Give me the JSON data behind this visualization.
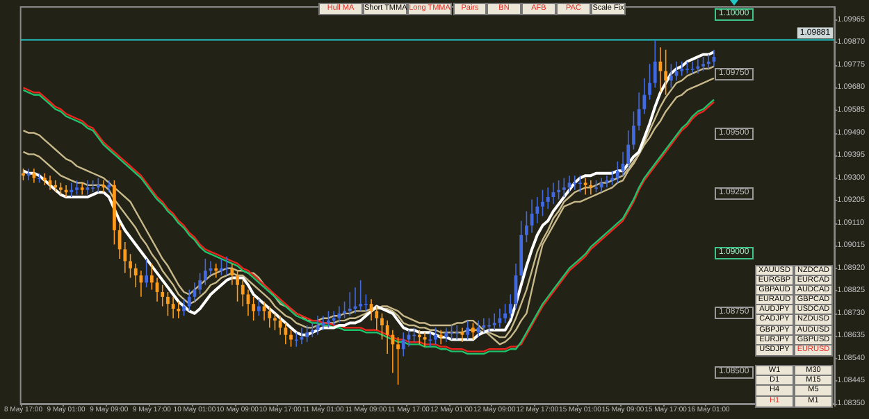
{
  "chart_data": {
    "type": "candlestick",
    "categories": [
      "8 May 17:00",
      null,
      null,
      null,
      null,
      null,
      null,
      null,
      "9 May 01:00",
      null,
      null,
      null,
      null,
      null,
      null,
      null,
      "9 May 09:00",
      null,
      null,
      null,
      null,
      null,
      null,
      null,
      "9 May 17:00",
      null,
      null,
      null,
      null,
      null,
      null,
      null,
      "10 May 01:00",
      null,
      null,
      null,
      null,
      null,
      null,
      null,
      "10 May 09:00",
      null,
      null,
      null,
      null,
      null,
      null,
      null,
      "10 May 17:00",
      null,
      null,
      null,
      null,
      null,
      null,
      null,
      "11 May 01:00",
      null,
      null,
      null,
      null,
      null,
      null,
      null,
      "11 May 09:00",
      null,
      null,
      null,
      null,
      null,
      null,
      null,
      "11 May 17:00",
      null,
      null,
      null,
      null,
      null,
      null,
      null,
      "12 May 01:00",
      null,
      null,
      null,
      null,
      null,
      null,
      null,
      "12 May 09:00",
      null,
      null,
      null,
      null,
      null,
      null,
      null,
      "12 May 17:00",
      null,
      null,
      null,
      null,
      null,
      null,
      null,
      "15 May 01:00",
      null,
      null,
      null,
      null,
      null,
      null,
      null,
      "15 May 09:00",
      null,
      null,
      null,
      null,
      null,
      null,
      null,
      "15 May 17:00",
      null,
      null,
      null,
      null,
      null,
      null,
      null,
      "16 May 01:00",
      null
    ],
    "ohlc": [
      [
        1.0932,
        1.0934,
        1.0929,
        1.0931
      ],
      [
        1.0931,
        1.0934,
        1.0929,
        1.0932
      ],
      [
        1.0932,
        1.0934,
        1.0928,
        1.093
      ],
      [
        1.093,
        1.0932,
        1.0928,
        1.093
      ],
      [
        1.093,
        1.0932,
        1.0927,
        1.0929
      ],
      [
        1.0929,
        1.0931,
        1.0925,
        1.0927
      ],
      [
        1.0927,
        1.0929,
        1.0924,
        1.0926
      ],
      [
        1.0926,
        1.0928,
        1.0923,
        1.0925
      ],
      [
        1.0925,
        1.0927,
        1.0922,
        1.0924
      ],
      [
        1.0924,
        1.0928,
        1.0922,
        1.0925
      ],
      [
        1.0925,
        1.0929,
        1.0923,
        1.0926
      ],
      [
        1.0926,
        1.0928,
        1.0923,
        1.0925
      ],
      [
        1.0925,
        1.0929,
        1.0923,
        1.0926
      ],
      [
        1.0926,
        1.0929,
        1.0924,
        1.0926
      ],
      [
        1.0926,
        1.093,
        1.0924,
        1.0927
      ],
      [
        1.0927,
        1.0929,
        1.0924,
        1.0926
      ],
      [
        1.0926,
        1.0929,
        1.0924,
        1.0927
      ],
      [
        1.0927,
        1.0929,
        1.0902,
        1.0908
      ],
      [
        1.0908,
        1.0911,
        1.0896,
        1.09
      ],
      [
        1.09,
        1.0903,
        1.089,
        1.0895
      ],
      [
        1.0895,
        1.0898,
        1.0888,
        1.0892
      ],
      [
        1.0892,
        1.0894,
        1.0884,
        1.0889
      ],
      [
        1.0889,
        1.0891,
        1.088,
        1.0886
      ],
      [
        1.0886,
        1.0896,
        1.0884,
        1.0889
      ],
      [
        1.0889,
        1.0894,
        1.0883,
        1.0886
      ],
      [
        1.0886,
        1.0888,
        1.0878,
        1.0882
      ],
      [
        1.0882,
        1.0885,
        1.0876,
        1.088
      ],
      [
        1.088,
        1.0882,
        1.0872,
        1.0877
      ],
      [
        1.0877,
        1.088,
        1.0871,
        1.0875
      ],
      [
        1.0875,
        1.0878,
        1.0871,
        1.0874
      ],
      [
        1.0874,
        1.0879,
        1.0872,
        1.0876
      ],
      [
        1.0876,
        1.0883,
        1.0874,
        1.088
      ],
      [
        1.088,
        1.0886,
        1.0878,
        1.0883
      ],
      [
        1.0883,
        1.089,
        1.0881,
        1.0887
      ],
      [
        1.0887,
        1.0896,
        1.0885,
        1.0891
      ],
      [
        1.0891,
        1.0895,
        1.0889,
        1.0892
      ],
      [
        1.0892,
        1.0894,
        1.0888,
        1.0891
      ],
      [
        1.0891,
        1.0896,
        1.0889,
        1.0892
      ],
      [
        1.0892,
        1.0897,
        1.0889,
        1.0892
      ],
      [
        1.0892,
        1.0894,
        1.0885,
        1.0889
      ],
      [
        1.0889,
        1.0891,
        1.0878,
        1.0885
      ],
      [
        1.0885,
        1.0887,
        1.0876,
        1.0881
      ],
      [
        1.0881,
        1.0883,
        1.0872,
        1.0877
      ],
      [
        1.0877,
        1.088,
        1.087,
        1.0874
      ],
      [
        1.0874,
        1.0879,
        1.0872,
        1.0876
      ],
      [
        1.0876,
        1.0878,
        1.087,
        1.0874
      ],
      [
        1.0874,
        1.0876,
        1.0867,
        1.0871
      ],
      [
        1.0871,
        1.0873,
        1.0866,
        1.087
      ],
      [
        1.087,
        1.0872,
        1.0864,
        1.0867
      ],
      [
        1.0867,
        1.0869,
        1.086,
        1.0864
      ],
      [
        1.0864,
        1.0866,
        1.0859,
        1.0862
      ],
      [
        1.0862,
        1.0865,
        1.0859,
        1.0862
      ],
      [
        1.0862,
        1.0867,
        1.086,
        1.0863
      ],
      [
        1.0863,
        1.0868,
        1.0861,
        1.0865
      ],
      [
        1.0865,
        1.0869,
        1.0863,
        1.0866
      ],
      [
        1.0866,
        1.0872,
        1.0864,
        1.0868
      ],
      [
        1.0868,
        1.0872,
        1.0866,
        1.0869
      ],
      [
        1.0869,
        1.0874,
        1.0867,
        1.087
      ],
      [
        1.087,
        1.0874,
        1.0868,
        1.0871
      ],
      [
        1.0871,
        1.0876,
        1.0869,
        1.0873
      ],
      [
        1.0873,
        1.0878,
        1.0871,
        1.0874
      ],
      [
        1.0874,
        1.0882,
        1.0872,
        1.0875
      ],
      [
        1.0875,
        1.0884,
        1.0873,
        1.0876
      ],
      [
        1.0876,
        1.0887,
        1.0874,
        1.0877
      ],
      [
        1.0877,
        1.0881,
        1.0874,
        1.0877
      ],
      [
        1.0877,
        1.0879,
        1.087,
        1.0874
      ],
      [
        1.0874,
        1.0876,
        1.0866,
        1.0871
      ],
      [
        1.0871,
        1.0873,
        1.0862,
        1.0868
      ],
      [
        1.0868,
        1.087,
        1.0856,
        1.0864
      ],
      [
        1.0864,
        1.0866,
        1.0848,
        1.086
      ],
      [
        1.086,
        1.0863,
        1.0843,
        1.0858
      ],
      [
        1.0858,
        1.0865,
        1.0855,
        1.0862
      ],
      [
        1.0862,
        1.0866,
        1.0859,
        1.0864
      ],
      [
        1.0864,
        1.0867,
        1.0861,
        1.0864
      ],
      [
        1.0864,
        1.0866,
        1.086,
        1.0863
      ],
      [
        1.0863,
        1.0865,
        1.0859,
        1.0862
      ],
      [
        1.0862,
        1.0865,
        1.0859,
        1.0862
      ],
      [
        1.0862,
        1.0867,
        1.086,
        1.0864
      ],
      [
        1.0864,
        1.0866,
        1.086,
        1.0863
      ],
      [
        1.0863,
        1.0867,
        1.0861,
        1.0865
      ],
      [
        1.0865,
        1.0868,
        1.0862,
        1.0865
      ],
      [
        1.0865,
        1.0868,
        1.0862,
        1.0865
      ],
      [
        1.0865,
        1.0867,
        1.0861,
        1.0864
      ],
      [
        1.0864,
        1.087,
        1.0862,
        1.0867
      ],
      [
        1.0867,
        1.0869,
        1.0862,
        1.0865
      ],
      [
        1.0865,
        1.087,
        1.0863,
        1.0867
      ],
      [
        1.0867,
        1.0871,
        1.0865,
        1.0868
      ],
      [
        1.0868,
        1.0871,
        1.0865,
        1.0868
      ],
      [
        1.0868,
        1.0873,
        1.0866,
        1.0869
      ],
      [
        1.0869,
        1.0875,
        1.0867,
        1.0871
      ],
      [
        1.0871,
        1.0877,
        1.0869,
        1.0873
      ],
      [
        1.0873,
        1.0881,
        1.0871,
        1.0877
      ],
      [
        1.0877,
        1.0894,
        1.0875,
        1.0889
      ],
      [
        1.0889,
        1.0912,
        1.0887,
        1.0906
      ],
      [
        1.0906,
        1.0916,
        1.0903,
        1.091
      ],
      [
        1.091,
        1.0921,
        1.0907,
        1.0915
      ],
      [
        1.0915,
        1.0922,
        1.0911,
        1.0918
      ],
      [
        1.0918,
        1.0925,
        1.0914,
        1.092
      ],
      [
        1.092,
        1.0926,
        1.0917,
        1.0922
      ],
      [
        1.0922,
        1.0928,
        1.0919,
        1.0924
      ],
      [
        1.0924,
        1.0929,
        1.0921,
        1.0925
      ],
      [
        1.0925,
        1.093,
        1.0922,
        1.0926
      ],
      [
        1.0926,
        1.0931,
        1.0924,
        1.0928
      ],
      [
        1.0928,
        1.0931,
        1.0925,
        1.0928
      ],
      [
        1.0928,
        1.0931,
        1.0924,
        1.0928
      ],
      [
        1.0928,
        1.093,
        1.0923,
        1.0927
      ],
      [
        1.0927,
        1.0929,
        1.0923,
        1.0926
      ],
      [
        1.0926,
        1.0929,
        1.0924,
        1.0926
      ],
      [
        1.0926,
        1.093,
        1.0924,
        1.0928
      ],
      [
        1.0928,
        1.0931,
        1.0926,
        1.0929
      ],
      [
        1.0929,
        1.0933,
        1.0927,
        1.093
      ],
      [
        1.093,
        1.0937,
        1.0928,
        1.0933
      ],
      [
        1.0933,
        1.0941,
        1.0931,
        1.0936
      ],
      [
        1.0936,
        1.095,
        1.0934,
        1.0944
      ],
      [
        1.0944,
        1.0958,
        1.0942,
        1.0952
      ],
      [
        1.0952,
        1.0966,
        1.095,
        1.0959
      ],
      [
        1.0959,
        1.0972,
        1.0957,
        1.0965
      ],
      [
        1.0965,
        1.0978,
        1.0963,
        1.097
      ],
      [
        1.097,
        1.0988,
        1.0968,
        1.0979
      ],
      [
        1.0979,
        1.0985,
        1.0966,
        1.0975
      ],
      [
        1.0975,
        1.0984,
        1.0965,
        1.0971
      ],
      [
        1.0971,
        1.0978,
        1.0968,
        1.0973
      ],
      [
        1.0973,
        1.0979,
        1.0971,
        1.0975
      ],
      [
        1.0975,
        1.0979,
        1.0973,
        1.0976
      ],
      [
        1.0976,
        1.0979,
        1.0974,
        1.0976
      ],
      [
        1.0976,
        1.0979,
        1.0974,
        1.0976
      ],
      [
        1.0976,
        1.098,
        1.0974,
        1.0977
      ],
      [
        1.0977,
        1.0981,
        1.0975,
        1.0978
      ],
      [
        1.0978,
        1.0982,
        1.0976,
        1.0979
      ],
      [
        1.0979,
        1.0984,
        1.0977,
        1.0981
      ]
    ],
    "colors": [
      "#ff9a1a",
      "#4169e1",
      "#ff9a1a",
      "#4169e1",
      "#ff9a1a",
      "#ff9a1a",
      "#ff9a1a",
      "#ff9a1a",
      "#ff9a1a",
      "#4169e1",
      "#4169e1",
      "#ff9a1a",
      "#4169e1",
      "#4169e1",
      "#4169e1",
      "#ff9a1a",
      "#4169e1",
      "#ff9a1a",
      "#ff9a1a",
      "#ff9a1a",
      "#ff9a1a",
      "#ff9a1a",
      "#ff9a1a",
      "#4169e1",
      "#ff9a1a",
      "#ff9a1a",
      "#ff9a1a",
      "#ff9a1a",
      "#ff9a1a",
      "#ff9a1a",
      "#4169e1",
      "#4169e1",
      "#4169e1",
      "#4169e1",
      "#4169e1",
      "#4169e1",
      "#ff9a1a",
      "#4169e1",
      "#4169e1",
      "#ff9a1a",
      "#ff9a1a",
      "#ff9a1a",
      "#ff9a1a",
      "#ff9a1a",
      "#4169e1",
      "#ff9a1a",
      "#ff9a1a",
      "#ff9a1a",
      "#ff9a1a",
      "#ff9a1a",
      "#ff9a1a",
      "#4169e1",
      "#4169e1",
      "#4169e1",
      "#4169e1",
      "#4169e1",
      "#4169e1",
      "#4169e1",
      "#4169e1",
      "#4169e1",
      "#4169e1",
      "#4169e1",
      "#4169e1",
      "#4169e1",
      "#4169e1",
      "#ff9a1a",
      "#ff9a1a",
      "#ff9a1a",
      "#ff9a1a",
      "#ff9a1a",
      "#ff9a1a",
      "#4169e1",
      "#4169e1",
      "#4169e1",
      "#ff9a1a",
      "#ff9a1a",
      "#4169e1",
      "#4169e1",
      "#ff9a1a",
      "#4169e1",
      "#4169e1",
      "#4169e1",
      "#ff9a1a",
      "#4169e1",
      "#ff9a1a",
      "#4169e1",
      "#4169e1",
      "#4169e1",
      "#4169e1",
      "#4169e1",
      "#4169e1",
      "#4169e1",
      "#4169e1",
      "#4169e1",
      "#4169e1",
      "#4169e1",
      "#4169e1",
      "#4169e1",
      "#4169e1",
      "#4169e1",
      "#4169e1",
      "#4169e1",
      "#4169e1",
      "#4169e1",
      "#4169e1",
      "#ff9a1a",
      "#ff9a1a",
      "#4169e1",
      "#4169e1",
      "#4169e1",
      "#4169e1",
      "#4169e1",
      "#4169e1",
      "#4169e1",
      "#4169e1",
      "#4169e1",
      "#4169e1",
      "#4169e1",
      "#4169e1",
      "#ff9a1a",
      "#ff9a1a",
      "#4169e1",
      "#4169e1",
      "#4169e1",
      "#4169e1",
      "#4169e1",
      "#4169e1",
      "#4169e1",
      "#4169e1",
      "#4169e1"
    ],
    "series": [
      {
        "type": "line",
        "color": "#c8b98a",
        "values": [
          1.095,
          1.0949,
          1.0949,
          1.0948,
          1.0946,
          1.0944,
          1.0942,
          1.094,
          1.0938,
          1.0937,
          1.0935,
          1.0934,
          1.0933,
          1.0932,
          1.0931,
          1.093,
          1.0928,
          1.0926,
          1.0924,
          1.0922,
          1.092,
          1.0916,
          1.0912,
          1.0908,
          1.0904,
          1.09,
          1.0896,
          1.0893,
          1.0889,
          1.0885,
          1.0882,
          1.0881,
          1.0883,
          1.0885,
          1.0887,
          1.0889,
          1.089,
          1.0891,
          1.0892,
          1.0892,
          1.0891,
          1.0891,
          1.089,
          1.089,
          1.0888,
          1.0885,
          1.0883,
          1.088,
          1.0877,
          1.0876,
          1.0875,
          1.0873,
          1.0872,
          1.087,
          1.087,
          1.087,
          1.0871,
          1.0871,
          1.0872,
          1.0872,
          1.0873,
          1.0873,
          1.0874,
          1.0874,
          1.0874,
          1.0875,
          1.0875,
          1.0876,
          1.0876,
          1.0875,
          1.0874,
          1.0872,
          1.0871,
          1.087,
          1.0869,
          1.0869,
          1.0868,
          1.0868,
          1.0868,
          1.0868,
          1.0868,
          1.0869,
          1.0869,
          1.087,
          1.087,
          1.0868,
          1.0866,
          1.0864,
          1.0862,
          1.086,
          1.0861,
          1.0863,
          1.0866,
          1.087,
          1.0873,
          1.0883,
          1.0893,
          1.0902,
          1.0906,
          1.091,
          1.0914,
          1.0918,
          1.0919,
          1.092,
          1.092,
          1.0921,
          1.0922,
          1.0923,
          1.0924,
          1.0925,
          1.0926,
          1.0928,
          1.0929,
          1.0933,
          1.0936,
          1.094,
          1.0944,
          1.0947,
          1.0951,
          1.0954,
          1.0958,
          1.0961,
          1.0964,
          1.0965,
          1.0967,
          1.0968,
          1.0969,
          1.097,
          1.0971,
          1.0972
        ]
      },
      {
        "type": "line",
        "color": "#c8b98a",
        "values": [
          1.0941,
          1.094,
          1.094,
          1.0939,
          1.0937,
          1.0935,
          1.0933,
          1.0931,
          1.093,
          1.0929,
          1.0928,
          1.0928,
          1.0927,
          1.0927,
          1.0927,
          1.0927,
          1.0925,
          1.0921,
          1.0918,
          1.0915,
          1.0912,
          1.0909,
          1.0905,
          1.0902,
          1.0898,
          1.0895,
          1.0891,
          1.0888,
          1.0885,
          1.0881,
          1.0879,
          1.0877,
          1.0878,
          1.088,
          1.0882,
          1.0885,
          1.0886,
          1.0888,
          1.0889,
          1.089,
          1.0889,
          1.0889,
          1.0887,
          1.0885,
          1.0883,
          1.0881,
          1.0879,
          1.0876,
          1.0874,
          1.0872,
          1.0871,
          1.0869,
          1.0868,
          1.0867,
          1.0867,
          1.0868,
          1.0869,
          1.0869,
          1.0869,
          1.087,
          1.087,
          1.0871,
          1.0871,
          1.0872,
          1.0873,
          1.0874,
          1.0875,
          1.0875,
          1.0875,
          1.0874,
          1.0872,
          1.0869,
          1.0868,
          1.0868,
          1.0867,
          1.0867,
          1.0866,
          1.0866,
          1.0865,
          1.0865,
          1.0865,
          1.0865,
          1.0865,
          1.0866,
          1.0866,
          1.0866,
          1.0865,
          1.0865,
          1.0864,
          1.0863,
          1.0863,
          1.0866,
          1.0871,
          1.0877,
          1.0883,
          1.0891,
          1.0899,
          1.0904,
          1.0908,
          1.0913,
          1.0916,
          1.092,
          1.0922,
          1.0924,
          1.0925,
          1.0926,
          1.0926,
          1.0927,
          1.0928,
          1.0928,
          1.0929,
          1.093,
          1.0931,
          1.0934,
          1.0937,
          1.094,
          1.0945,
          1.095,
          1.0955,
          1.096,
          1.0964,
          1.0967,
          1.097,
          1.0971,
          1.0973,
          1.0974,
          1.0975,
          1.0976,
          1.0976,
          1.0977
        ]
      },
      {
        "type": "line",
        "color": "#e8261e",
        "values": [
          1.0968,
          1.0967,
          1.0966,
          1.0966,
          1.0964,
          1.0962,
          1.096,
          1.0959,
          1.0957,
          1.0956,
          1.0955,
          1.0954,
          1.0952,
          1.0951,
          1.0948,
          1.0945,
          1.0943,
          1.0941,
          1.0939,
          1.0937,
          1.0935,
          1.0933,
          1.0931,
          1.0928,
          1.0925,
          1.0922,
          1.092,
          1.0917,
          1.0915,
          1.0912,
          1.091,
          1.0907,
          1.0905,
          1.0902,
          1.09,
          1.0899,
          1.0898,
          1.0897,
          1.0896,
          1.0895,
          1.0894,
          1.0892,
          1.0891,
          1.0889,
          1.0887,
          1.0885,
          1.0883,
          1.0881,
          1.0879,
          1.0877,
          1.0875,
          1.0873,
          1.0872,
          1.0871,
          1.087,
          1.087,
          1.0869,
          1.0869,
          1.0868,
          1.0868,
          1.0867,
          1.0867,
          1.0867,
          1.0867,
          1.0866,
          1.0866,
          1.0866,
          1.0865,
          1.0864,
          1.0863,
          1.0862,
          1.0862,
          1.0861,
          1.0861,
          1.0861,
          1.086,
          1.086,
          1.086,
          1.0859,
          1.0859,
          1.0858,
          1.0858,
          1.0858,
          1.0857,
          1.0857,
          1.0857,
          1.0857,
          1.0858,
          1.0858,
          1.0858,
          1.0858,
          1.0859,
          1.0859,
          1.086,
          1.0864,
          1.0868,
          1.0872,
          1.0876,
          1.0879,
          1.0882,
          1.0885,
          1.0888,
          1.0891,
          1.0893,
          1.0895,
          1.0897,
          1.09,
          1.0902,
          1.0904,
          1.0906,
          1.0908,
          1.091,
          1.0912,
          1.0916,
          1.092,
          1.0925,
          1.0929,
          1.0932,
          1.0935,
          1.0938,
          1.0941,
          1.0944,
          1.0947,
          1.095,
          1.0952,
          1.0955,
          1.0957,
          1.0958,
          1.096,
          1.0962
        ]
      },
      {
        "type": "line",
        "color": "#1fc26a",
        "values": [
          1.0967,
          1.0966,
          1.0965,
          1.0965,
          1.0963,
          1.0961,
          1.0959,
          1.0958,
          1.0956,
          1.0955,
          1.0954,
          1.0953,
          1.0951,
          1.095,
          1.0947,
          1.0944,
          1.0942,
          1.094,
          1.0938,
          1.0936,
          1.0934,
          1.0932,
          1.093,
          1.0927,
          1.0924,
          1.0921,
          1.0919,
          1.0916,
          1.0914,
          1.0911,
          1.0909,
          1.0906,
          1.0904,
          1.0901,
          1.0899,
          1.0898,
          1.0897,
          1.0896,
          1.0895,
          1.0894,
          1.0893,
          1.0891,
          1.089,
          1.0888,
          1.0886,
          1.0884,
          1.0882,
          1.088,
          1.0878,
          1.0876,
          1.0874,
          1.0872,
          1.0871,
          1.087,
          1.0869,
          1.0869,
          1.0868,
          1.0868,
          1.0867,
          1.0867,
          1.0866,
          1.0866,
          1.0866,
          1.0866,
          1.0865,
          1.0865,
          1.0865,
          1.0864,
          1.0863,
          1.0862,
          1.0861,
          1.0861,
          1.086,
          1.086,
          1.086,
          1.0859,
          1.0859,
          1.0859,
          1.0858,
          1.0858,
          1.0857,
          1.0857,
          1.0857,
          1.0856,
          1.0856,
          1.0856,
          1.0856,
          1.0857,
          1.0857,
          1.0857,
          1.0857,
          1.0858,
          1.0858,
          1.0861,
          1.0865,
          1.0869,
          1.0873,
          1.0877,
          1.088,
          1.0883,
          1.0886,
          1.0889,
          1.0892,
          1.0894,
          1.0896,
          1.0898,
          1.0901,
          1.0903,
          1.0905,
          1.0907,
          1.0909,
          1.0911,
          1.0913,
          1.0917,
          1.0921,
          1.0926,
          1.093,
          1.0933,
          1.0936,
          1.0939,
          1.0942,
          1.0945,
          1.0948,
          1.0951,
          1.0953,
          1.0956,
          1.0958,
          1.0959,
          1.0961,
          1.0963
        ]
      },
      {
        "type": "line",
        "color": "#ffffff",
        "values": [
          1.0933,
          1.0932,
          1.0932,
          1.0931,
          1.0929,
          1.0927,
          1.0925,
          1.0923,
          1.0922,
          1.0922,
          1.0922,
          1.0922,
          1.0922,
          1.0923,
          1.0924,
          1.0924,
          1.0922,
          1.0917,
          1.0912,
          1.0908,
          1.0905,
          1.0902,
          1.0899,
          1.0896,
          1.0893,
          1.089,
          1.0887,
          1.0884,
          1.0881,
          1.0878,
          1.0876,
          1.0874,
          1.0873,
          1.0875,
          1.0878,
          1.0881,
          1.0883,
          1.0885,
          1.0887,
          1.0888,
          1.0888,
          1.0888,
          1.0885,
          1.0881,
          1.0879,
          1.0877,
          1.0875,
          1.0873,
          1.0871,
          1.0869,
          1.0867,
          1.0865,
          1.0864,
          1.0864,
          1.0865,
          1.0866,
          1.0867,
          1.0867,
          1.0867,
          1.0868,
          1.0868,
          1.0869,
          1.0869,
          1.087,
          1.0872,
          1.0874,
          1.0876,
          1.0875,
          1.0874,
          1.0873,
          1.087,
          1.0867,
          1.0866,
          1.0866,
          1.0865,
          1.0865,
          1.0865,
          1.0864,
          1.0863,
          1.0863,
          1.0862,
          1.0862,
          1.0862,
          1.0862,
          1.0862,
          1.0864,
          1.0865,
          1.0866,
          1.0866,
          1.0866,
          1.0866,
          1.087,
          1.0877,
          1.0885,
          1.0893,
          1.09,
          1.0906,
          1.091,
          1.0912,
          1.0916,
          1.0919,
          1.0922,
          1.0925,
          1.0928,
          1.093,
          1.0931,
          1.0931,
          1.0932,
          1.0932,
          1.0932,
          1.0932,
          1.0933,
          1.0933,
          1.0936,
          1.0939,
          1.0941,
          1.0947,
          1.0953,
          1.096,
          1.0966,
          1.097,
          1.0974,
          1.0976,
          1.0977,
          1.0979,
          1.098,
          1.0981,
          1.0982,
          1.0982,
          1.0983
        ]
      }
    ],
    "marker": "none",
    "ylim": [
      1.0835,
      1.1002
    ],
    "yticks": [
      {
        "value": 1.0835,
        "label": "1.08350"
      },
      {
        "value": 1.08445,
        "label": "1.08445"
      },
      {
        "value": 1.0854,
        "label": "1.08540"
      },
      {
        "value": 1.08635,
        "label": "1.08635"
      },
      {
        "value": 1.0873,
        "label": "1.08730"
      },
      {
        "value": 1.08825,
        "label": "1.08825"
      },
      {
        "value": 1.0892,
        "label": "1.08920"
      },
      {
        "value": 1.09015,
        "label": "1.09015"
      },
      {
        "value": 1.0911,
        "label": "1.09110"
      },
      {
        "value": 1.09205,
        "label": "1.09205"
      },
      {
        "value": 1.093,
        "label": "1.09300"
      },
      {
        "value": 1.09395,
        "label": "1.09395"
      },
      {
        "value": 1.0949,
        "label": "1.09490"
      },
      {
        "value": 1.09585,
        "label": "1.09585"
      },
      {
        "value": 1.0968,
        "label": "1.09680"
      },
      {
        "value": 1.09775,
        "label": "1.09775"
      },
      {
        "value": 1.0987,
        "label": "1.09870"
      },
      {
        "value": 1.09965,
        "label": "1.09965"
      }
    ],
    "grid": false,
    "ref_lines": [
      {
        "axis": "y",
        "value": 1.09881,
        "label": "1.09881",
        "color": "#22c8c8"
      }
    ],
    "annotations": [
      "Hull MA",
      "Short TMMA",
      "Long TMMA",
      "Pairs",
      "BN",
      "AFB",
      "PAC",
      "Scale Fix",
      "XAUUSD",
      "NZDCAD",
      "EURGBP",
      "EURCAD",
      "GBPAUD",
      "AUDCAD",
      "EURAUD",
      "GBPCAD",
      "AUDJPY",
      "USDCAD",
      "CADJPY",
      "NZDUSD",
      "GBPJPY",
      "AUDUSD",
      "EURJPY",
      "GBPUSD",
      "USDJPY",
      "EURUSD",
      "W1",
      "M30",
      "D1",
      "M15",
      "H4",
      "M5",
      "H1",
      "M1",
      "1.10000",
      "1.09750",
      "1.09500",
      "1.09250",
      "1.09000",
      "1.08750",
      "1.08500"
    ]
  }
}
